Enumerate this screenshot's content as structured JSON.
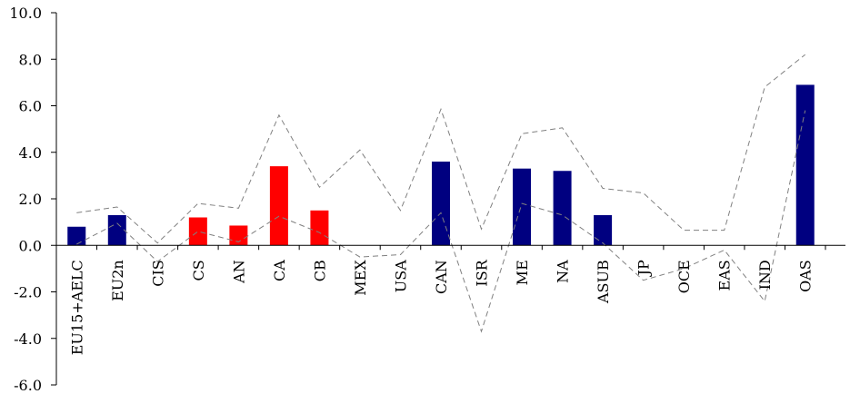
{
  "chart_data": {
    "type": "bar",
    "title": "",
    "xlabel": "",
    "ylabel": "",
    "ylim": [
      -6,
      10
    ],
    "yticks": [
      "10.0",
      "8.0",
      "6.0",
      "4.0",
      "2.0",
      "0.0",
      "-2.0",
      "-4.0",
      "-6.0"
    ],
    "categories": [
      "EU15+AELC",
      "EU2n",
      "CIS",
      "CS",
      "AN",
      "CA",
      "CB",
      "MEX",
      "USA",
      "CAN",
      "ISR",
      "ME",
      "NA",
      "ASUB",
      "JP",
      "OCE",
      "EAS",
      "IND",
      "OAS"
    ],
    "series": [
      {
        "values": [
          0.8,
          1.3,
          0,
          1.2,
          0.85,
          3.4,
          1.5,
          0,
          0,
          3.6,
          0,
          3.3,
          3.2,
          1.3,
          0,
          0,
          0,
          0,
          6.9
        ],
        "colors": [
          "#000080",
          "#000080",
          "#000080",
          "#ff0000",
          "#ff0000",
          "#ff0000",
          "#ff0000",
          "#000080",
          "#000080",
          "#000080",
          "#000080",
          "#000080",
          "#000080",
          "#000080",
          "#000080",
          "#000080",
          "#000080",
          "#000080",
          "#000080"
        ]
      },
      {
        "style": "dashed-line",
        "color": "#808080",
        "values": [
          1.4,
          1.65,
          0.1,
          1.8,
          1.6,
          5.6,
          2.5,
          4.1,
          1.5,
          5.85,
          0.7,
          4.8,
          5.05,
          2.45,
          2.25,
          0.65,
          0.65,
          6.8,
          8.2
        ]
      },
      {
        "style": "dashed-line",
        "color": "#808080",
        "values": [
          0.05,
          0.95,
          -0.7,
          0.6,
          0.15,
          1.25,
          0.55,
          -0.5,
          -0.4,
          1.4,
          -3.7,
          1.8,
          1.3,
          0.1,
          -1.5,
          -1.0,
          -0.2,
          -2.4,
          5.8
        ]
      }
    ],
    "grid": false,
    "legend": "none"
  }
}
